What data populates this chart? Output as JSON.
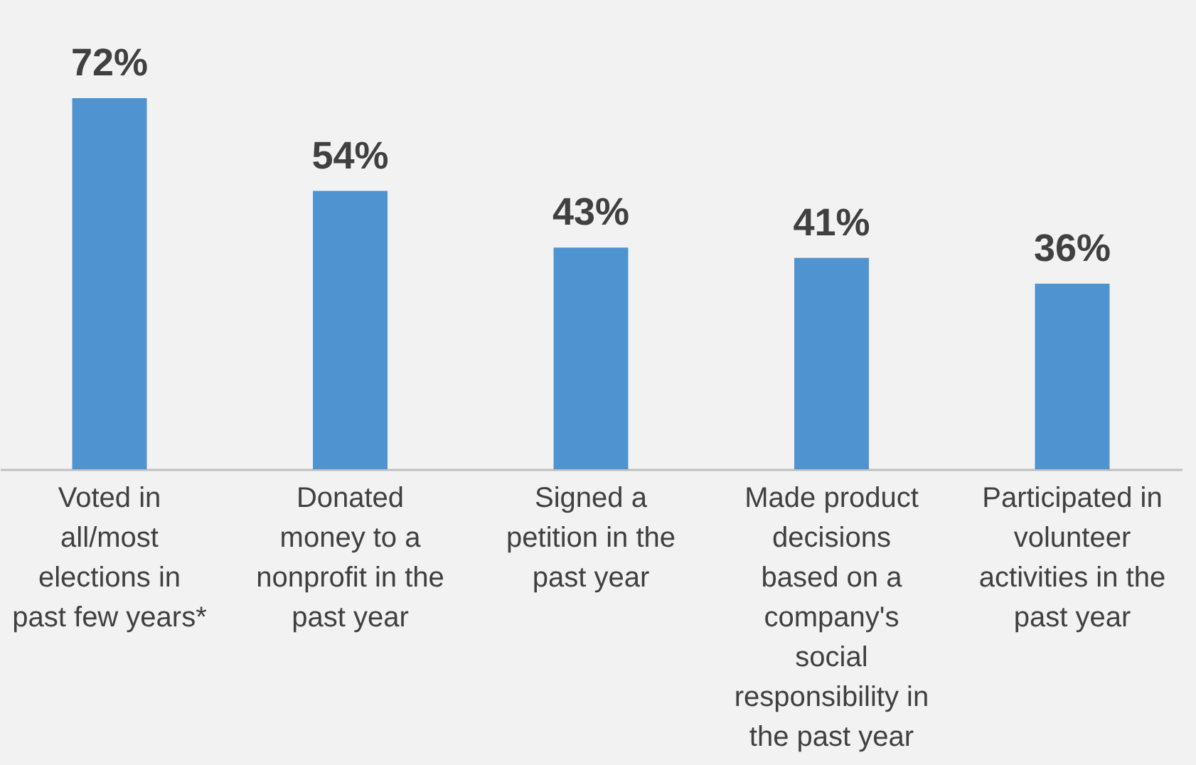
{
  "chart_data": {
    "type": "bar",
    "categories": [
      "Voted in all/most elections in past few years*",
      "Donated money to a nonprofit in the past year",
      "Signed a petition in the past year",
      "Made product decisions based on a company's social responsibility in the past year",
      "Participated in volunteer activities in the past year"
    ],
    "values": [
      72,
      54,
      43,
      41,
      36
    ],
    "value_labels": [
      "72%",
      "54%",
      "43%",
      "41%",
      "36%"
    ],
    "color": "#4f93d0"
  }
}
